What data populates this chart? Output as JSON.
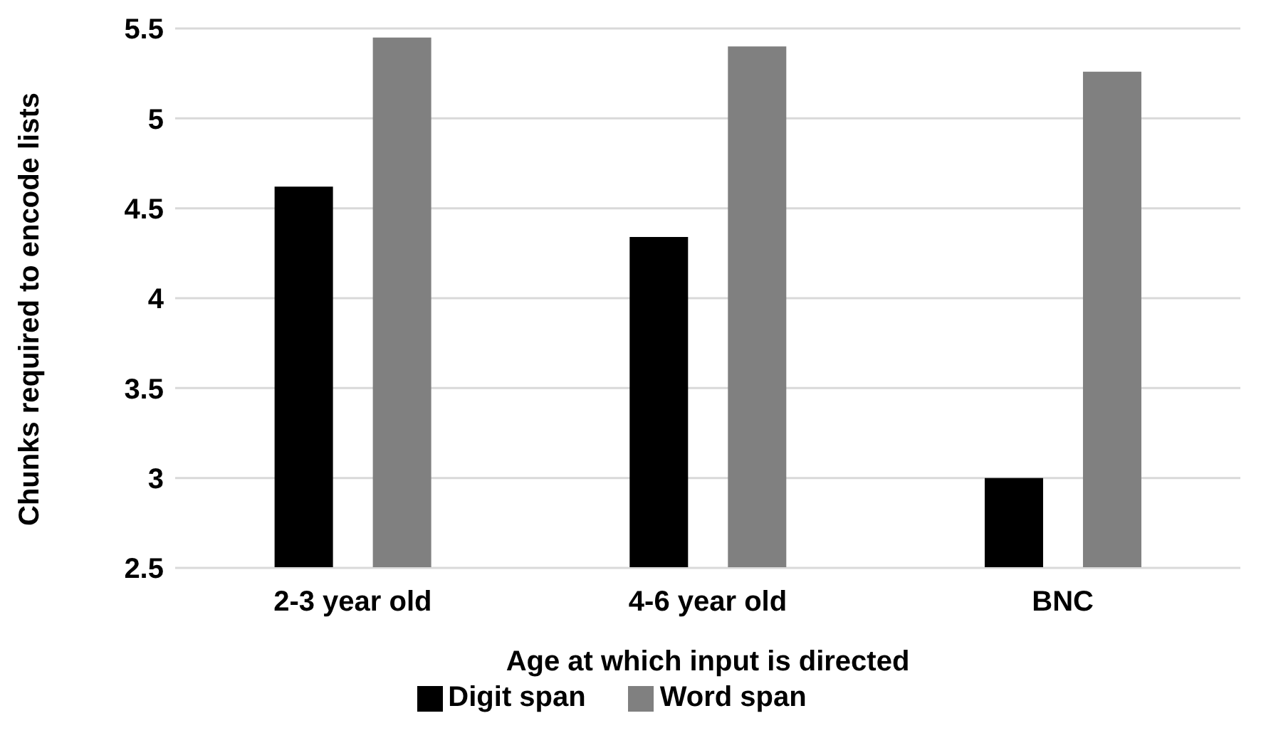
{
  "chart_data": {
    "type": "bar",
    "xlabel": "Age at which input is directed",
    "ylabel": "Chunks required to encode lists",
    "categories": [
      "2-3 year old",
      "4-6 year old",
      "BNC"
    ],
    "series": [
      {
        "name": "Digit span",
        "color": "#000000",
        "values": [
          4.62,
          4.34,
          3.0
        ]
      },
      {
        "name": "Word span",
        "color": "#808080",
        "values": [
          5.45,
          5.4,
          5.26
        ]
      }
    ],
    "ylim": [
      2.5,
      5.5
    ],
    "yticks": [
      2.5,
      3,
      3.5,
      4,
      4.5,
      5,
      5.5
    ],
    "grid": "y",
    "legend": "bottom"
  }
}
